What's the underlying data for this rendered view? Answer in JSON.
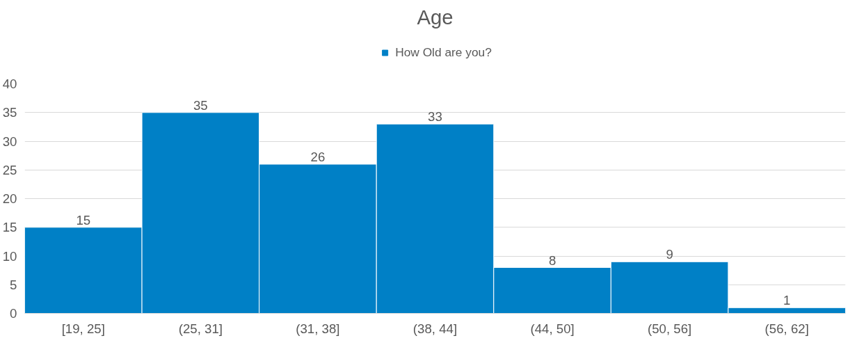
{
  "chart_data": {
    "type": "bar",
    "title": "Age",
    "categories": [
      "[19, 25]",
      "(25, 31]",
      "(31, 38]",
      "(38, 44]",
      "(44, 50]",
      "(50, 56]",
      "(56, 62]"
    ],
    "series": [
      {
        "name": "How Old are you?",
        "color": "#0080c6",
        "values": [
          15,
          35,
          26,
          33,
          8,
          9,
          1
        ]
      }
    ],
    "ylim": [
      0,
      40
    ],
    "yticks": [
      0,
      5,
      10,
      15,
      20,
      25,
      30,
      35,
      40
    ],
    "grid": "y",
    "legend": "top",
    "data_labels": true
  }
}
